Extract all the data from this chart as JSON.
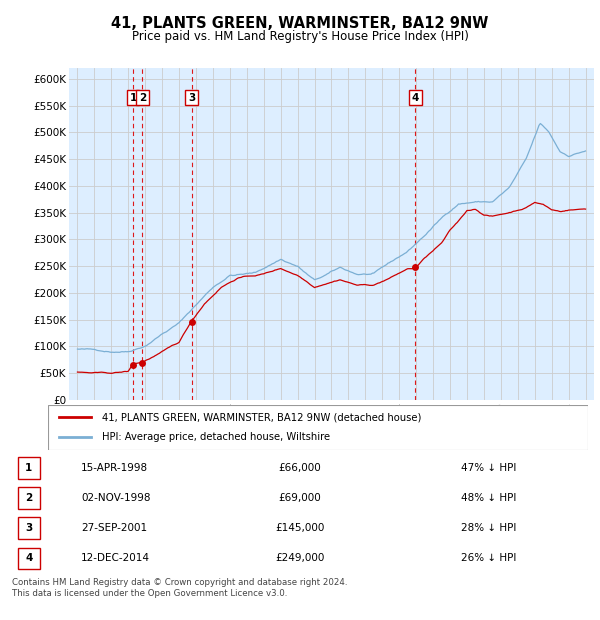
{
  "title": "41, PLANTS GREEN, WARMINSTER, BA12 9NW",
  "subtitle": "Price paid vs. HM Land Registry's House Price Index (HPI)",
  "footer1": "Contains HM Land Registry data © Crown copyright and database right 2024.",
  "footer2": "This data is licensed under the Open Government Licence v3.0.",
  "legend1": "41, PLANTS GREEN, WARMINSTER, BA12 9NW (detached house)",
  "legend2": "HPI: Average price, detached house, Wiltshire",
  "sales": [
    {
      "num": 1,
      "date": "15-APR-1998",
      "year": 1998.29,
      "price": 66000,
      "pct": "47% ↓ HPI"
    },
    {
      "num": 2,
      "date": "02-NOV-1998",
      "year": 1998.84,
      "price": 69000,
      "pct": "48% ↓ HPI"
    },
    {
      "num": 3,
      "date": "27-SEP-2001",
      "year": 2001.74,
      "price": 145000,
      "pct": "28% ↓ HPI"
    },
    {
      "num": 4,
      "date": "12-DEC-2014",
      "year": 2014.95,
      "price": 249000,
      "pct": "26% ↓ HPI"
    }
  ],
  "red_color": "#cc0000",
  "blue_color": "#7bafd4",
  "vline_color": "#dd0000",
  "grid_color": "#cccccc",
  "plot_bg": "#ddeeff",
  "ylim": [
    0,
    620000
  ],
  "yticks": [
    0,
    50000,
    100000,
    150000,
    200000,
    250000,
    300000,
    350000,
    400000,
    450000,
    500000,
    550000,
    600000
  ],
  "ytick_labels": [
    "£0",
    "£50K",
    "£100K",
    "£150K",
    "£200K",
    "£250K",
    "£300K",
    "£350K",
    "£400K",
    "£450K",
    "£500K",
    "£550K",
    "£600K"
  ],
  "xlim": [
    1994.5,
    2025.5
  ],
  "xticks": [
    1995,
    1996,
    1997,
    1998,
    1999,
    2000,
    2001,
    2002,
    2003,
    2004,
    2005,
    2006,
    2007,
    2008,
    2009,
    2010,
    2011,
    2012,
    2013,
    2014,
    2015,
    2016,
    2017,
    2018,
    2019,
    2020,
    2021,
    2022,
    2023,
    2024,
    2025
  ]
}
